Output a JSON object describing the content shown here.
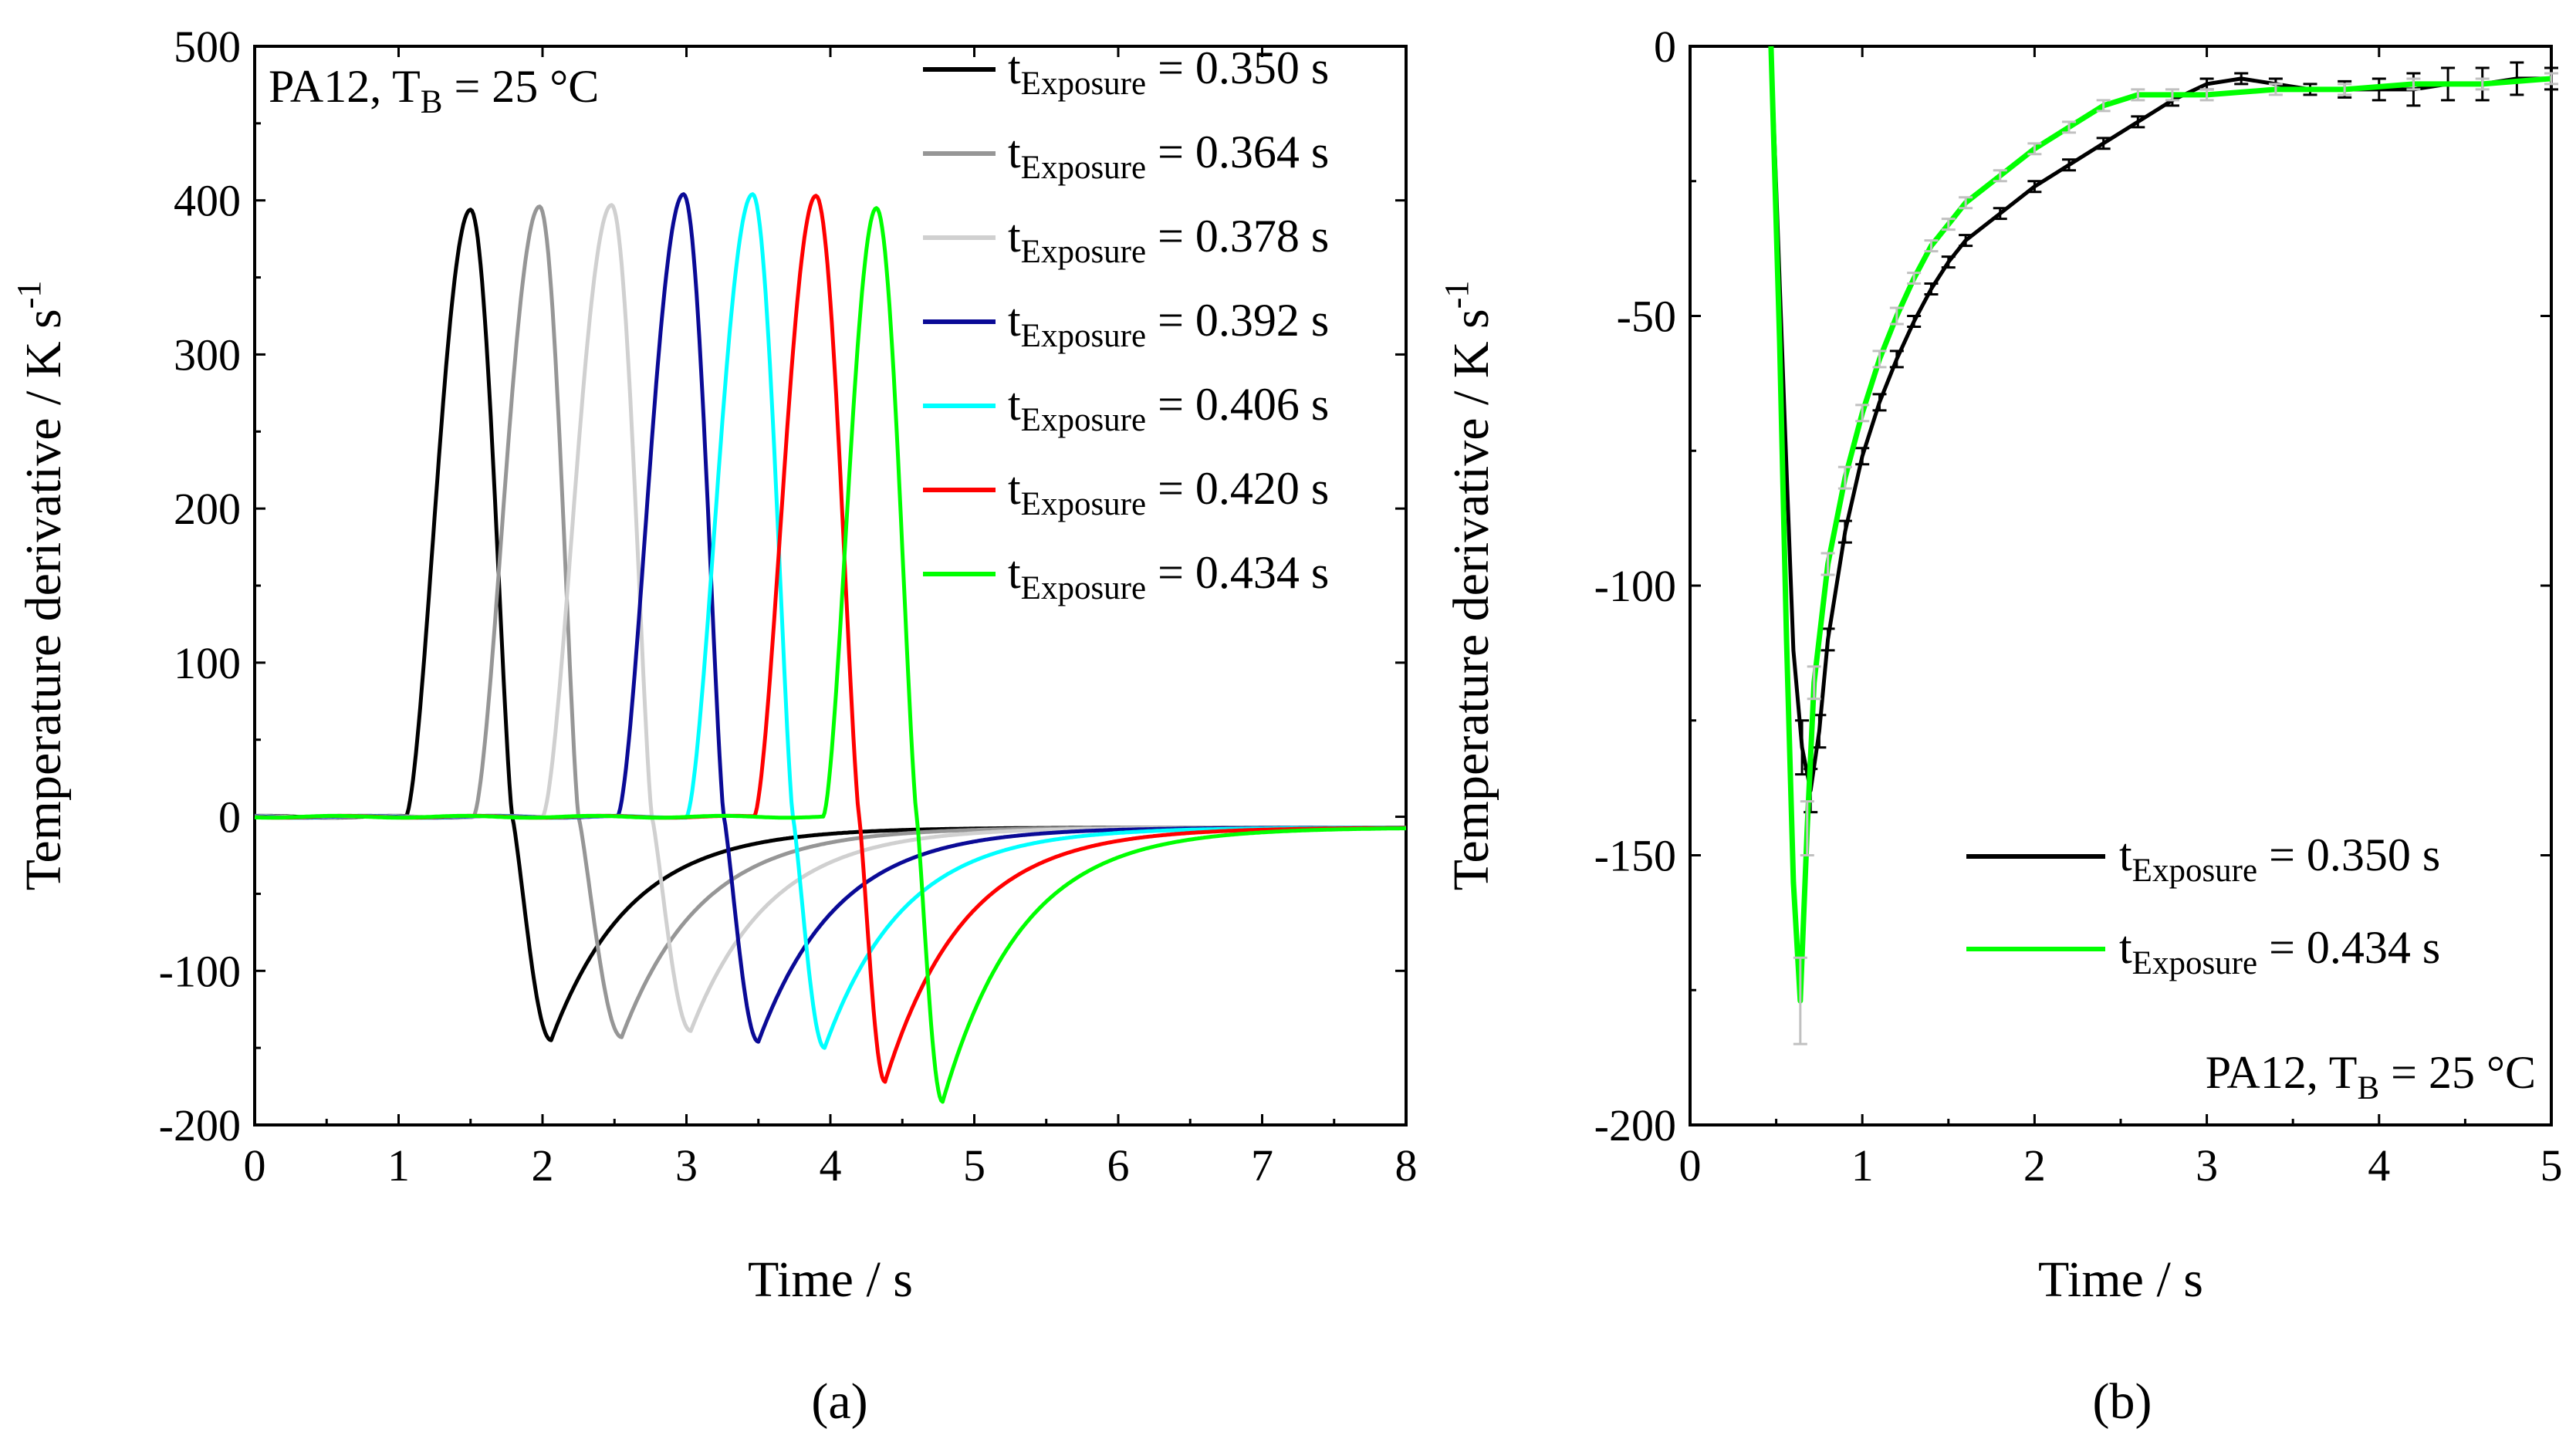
{
  "figure": {
    "panel_a_caption": "(a)",
    "panel_b_caption": "(b)"
  },
  "chart_data": [
    {
      "type": "line",
      "panel": "a",
      "xlabel": "Time / s",
      "ylabel": "Temperature derivative / K s",
      "ylabel_exponent": "-1",
      "xlim": [
        0,
        8
      ],
      "ylim": [
        -200,
        500
      ],
      "xticks": [
        0,
        1,
        2,
        3,
        4,
        5,
        6,
        7,
        8
      ],
      "yticks": [
        -200,
        -100,
        0,
        100,
        200,
        300,
        400,
        500
      ],
      "annotation": {
        "text": "PA12, T",
        "sub": "B",
        "tail": " = 25 °C",
        "position": "top-left"
      },
      "legend_position": "top-right",
      "series": [
        {
          "name": "t",
          "sub": "Exposure",
          "value_label": " = 0.350 s",
          "color": "#000000",
          "onset": 1.05,
          "peak_t": 1.5,
          "peak": 394,
          "cross": 1.79,
          "trough_t": 2.06,
          "trough": -145
        },
        {
          "name": "t",
          "sub": "Exposure",
          "value_label": " = 0.364 s",
          "color": "#969696",
          "onset": 1.52,
          "peak_t": 1.98,
          "peak": 396,
          "cross": 2.25,
          "trough_t": 2.55,
          "trough": -143
        },
        {
          "name": "t",
          "sub": "Exposure",
          "value_label": " = 0.378 s",
          "color": "#d0d0d0",
          "onset": 2.0,
          "peak_t": 2.48,
          "peak": 397,
          "cross": 2.76,
          "trough_t": 3.03,
          "trough": -139
        },
        {
          "name": "t",
          "sub": "Exposure",
          "value_label": " = 0.392 s",
          "color": "#0a0a96",
          "onset": 2.52,
          "peak_t": 2.98,
          "peak": 404,
          "cross": 3.26,
          "trough_t": 3.5,
          "trough": -146
        },
        {
          "name": "t",
          "sub": "Exposure",
          "value_label": " = 0.406 s",
          "color": "#00ffff",
          "onset": 3.0,
          "peak_t": 3.46,
          "peak": 404,
          "cross": 3.74,
          "trough_t": 3.96,
          "trough": -150
        },
        {
          "name": "t",
          "sub": "Exposure",
          "value_label": " = 0.420 s",
          "color": "#ff0000",
          "onset": 3.47,
          "peak_t": 3.9,
          "peak": 403,
          "cross": 4.2,
          "trough_t": 4.38,
          "trough": -172
        },
        {
          "name": "t",
          "sub": "Exposure",
          "value_label": " = 0.434 s",
          "color": "#00ff00",
          "onset": 3.95,
          "peak_t": 4.32,
          "peak": 395,
          "cross": 4.6,
          "trough_t": 4.78,
          "trough": -185
        }
      ]
    },
    {
      "type": "line",
      "panel": "b",
      "xlabel": "Time / s",
      "ylabel": "Temperature derivative / K s",
      "ylabel_exponent": "-1",
      "xlim": [
        0,
        5
      ],
      "ylim": [
        -200,
        0
      ],
      "xticks": [
        0,
        1,
        2,
        3,
        4,
        5
      ],
      "yticks": [
        -200,
        -150,
        -100,
        -50,
        0
      ],
      "annotation": {
        "text": "PA12, T",
        "sub": "B",
        "tail": " = 25 °C",
        "position": "bottom-right"
      },
      "legend_position": "lower-right",
      "series": [
        {
          "name": "t",
          "sub": "Exposure",
          "value_label": " = 0.350 s",
          "color": "#000000",
          "error_color": "#000000",
          "x": [
            0.47,
            0.55,
            0.6,
            0.65,
            0.7,
            0.75,
            0.8,
            0.9,
            1.0,
            1.1,
            1.2,
            1.3,
            1.4,
            1.5,
            1.6,
            1.8,
            2.0,
            2.2,
            2.4,
            2.6,
            2.8,
            3.0,
            3.2,
            3.4,
            3.6,
            3.8,
            4.0,
            4.2,
            4.4,
            4.6,
            4.8,
            5.0
          ],
          "y": [
            0,
            -70,
            -112,
            -130,
            -138,
            -127,
            -110,
            -90,
            -76,
            -66,
            -58,
            -51,
            -45,
            -40,
            -36,
            -31,
            -26,
            -22,
            -18,
            -14,
            -10,
            -7,
            -6,
            -7,
            -8,
            -8,
            -8,
            -8,
            -7,
            -7,
            -6,
            -6
          ],
          "error": [
            0,
            0,
            0,
            5,
            4,
            3,
            2,
            2,
            1.5,
            1.5,
            1.5,
            1,
            1,
            1,
            1,
            1,
            1,
            1,
            1,
            1,
            1,
            1,
            1,
            1,
            1,
            1.5,
            2,
            3,
            3,
            3,
            3,
            2
          ]
        },
        {
          "name": "t",
          "sub": "Exposure",
          "value_label": " = 0.434 s",
          "color": "#00ff00",
          "error_color": "#c0c0c0",
          "x": [
            0.47,
            0.52,
            0.56,
            0.6,
            0.64,
            0.68,
            0.72,
            0.8,
            0.9,
            1.0,
            1.1,
            1.2,
            1.3,
            1.4,
            1.5,
            1.6,
            1.8,
            2.0,
            2.2,
            2.4,
            2.6,
            2.8,
            3.0,
            3.4,
            3.8,
            4.2,
            4.6,
            5.0
          ],
          "y": [
            0,
            -55,
            -110,
            -155,
            -177,
            -145,
            -118,
            -96,
            -80,
            -68,
            -58,
            -50,
            -43,
            -37,
            -33,
            -29,
            -24,
            -19,
            -15,
            -11,
            -9,
            -9,
            -9,
            -8,
            -8,
            -7,
            -7,
            -6
          ],
          "error": [
            0,
            0,
            0,
            0,
            8,
            5,
            3,
            2,
            2,
            1.5,
            1.5,
            1.5,
            1,
            1,
            1,
            1,
            1,
            1,
            1,
            1,
            1,
            1,
            1,
            1,
            1,
            1,
            1,
            1
          ]
        }
      ]
    }
  ]
}
